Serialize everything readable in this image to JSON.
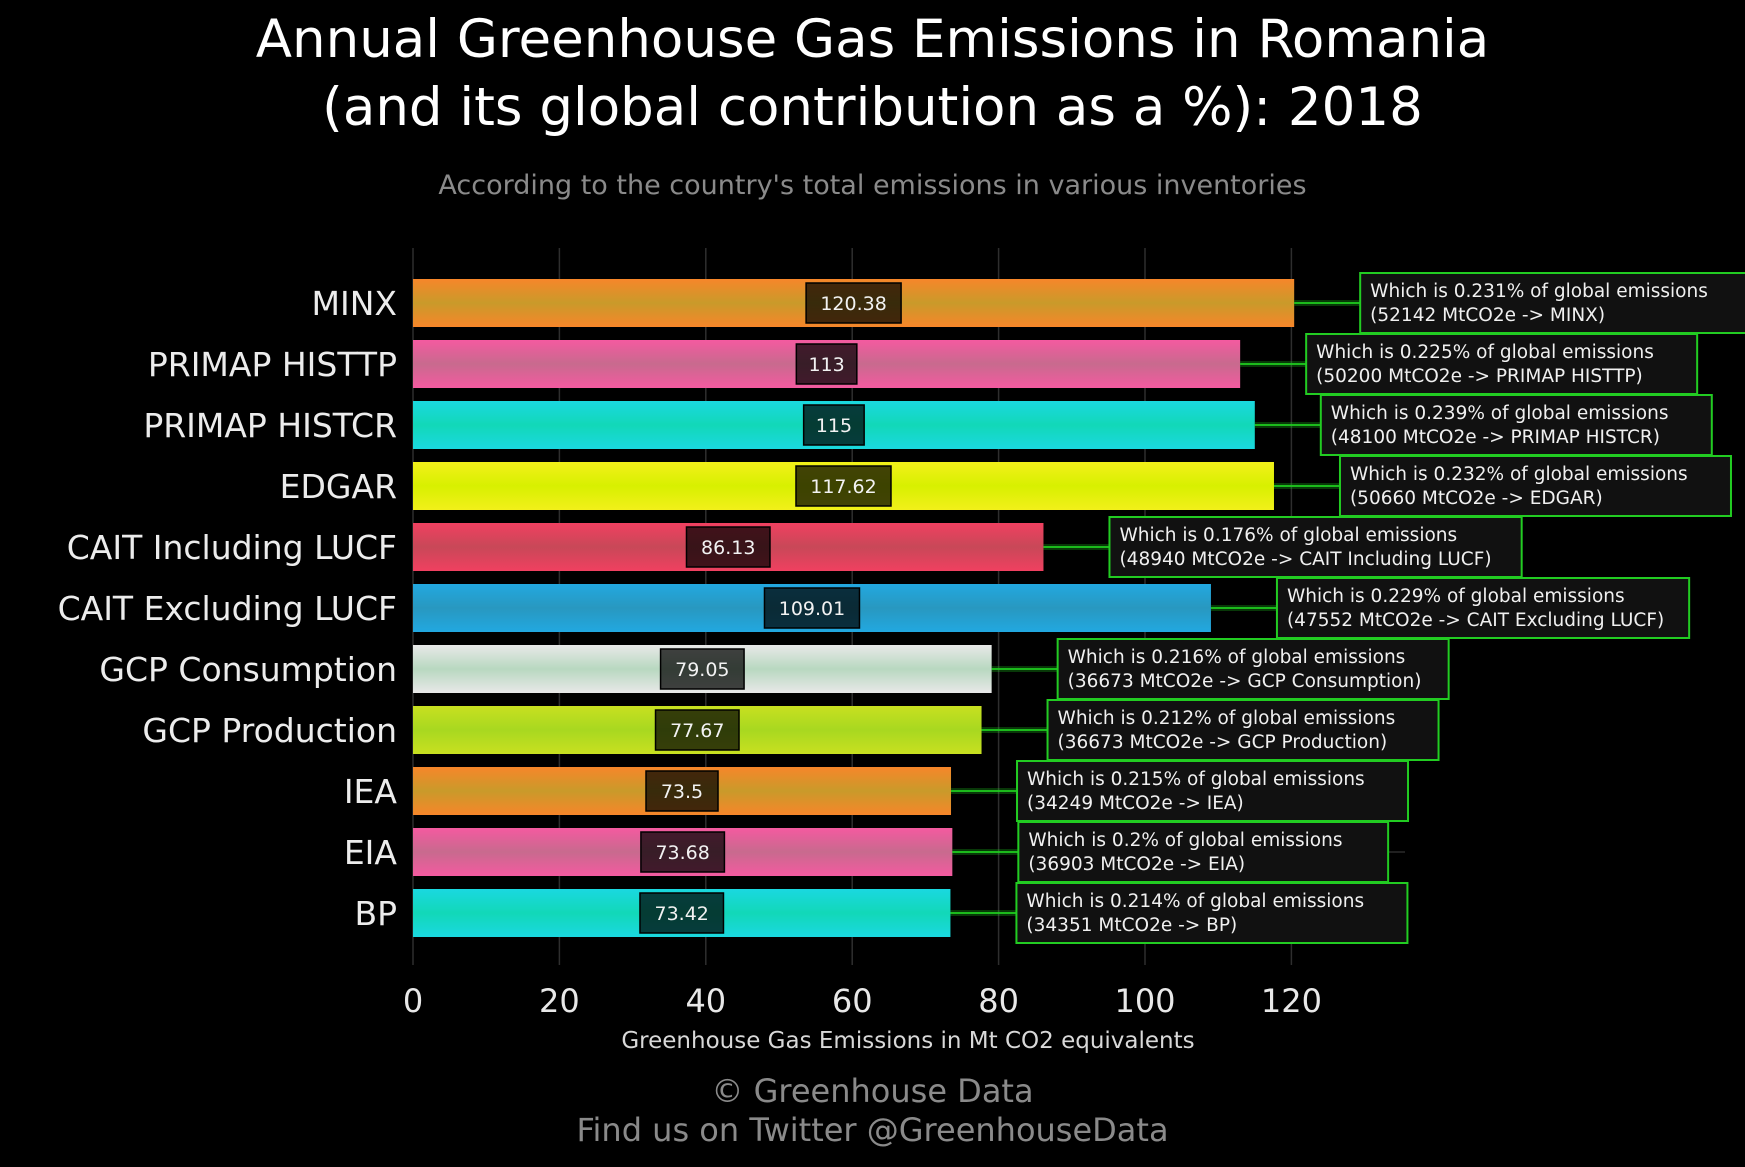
{
  "chart_data": {
    "type": "bar",
    "orientation": "horizontal",
    "title": "Annual Greenhouse Gas Emissions in Romania\n(and its global contribution as a %): 2018",
    "subtitle": "According to the country's total emissions in various inventories",
    "xlabel": "Greenhouse Gas Emissions in Mt CO2 equivalents",
    "ylabel": "",
    "xlim": [
      0,
      135
    ],
    "xticks": [
      0,
      20,
      40,
      60,
      80,
      100,
      120
    ],
    "grid": true,
    "categories": [
      "MINX",
      "PRIMAP HISTTP",
      "PRIMAP HISTCR",
      "EDGAR",
      "CAIT Including LUCF",
      "CAIT Excluding LUCF",
      "GCP Consumption",
      "GCP Production",
      "IEA",
      "EIA",
      "BP"
    ],
    "value_labels": [
      "120.38",
      "113",
      "115",
      "117.62",
      "86.13",
      "109.01",
      "79.05",
      "77.67",
      "73.5",
      "73.68",
      "73.42"
    ],
    "values": [
      120.38,
      113,
      115,
      117.62,
      86.13,
      109.01,
      79.05,
      77.67,
      73.5,
      73.68,
      73.42
    ],
    "annotations": [
      {
        "line1": "Which is 0.231% of global emissions",
        "line2": "(52142 MtCO2e -> MINX)"
      },
      {
        "line1": "Which is 0.225% of global emissions",
        "line2": "(50200 MtCO2e -> PRIMAP HISTTP)"
      },
      {
        "line1": "Which is 0.239% of global emissions",
        "line2": "(48100 MtCO2e -> PRIMAP HISTCR)"
      },
      {
        "line1": "Which is 0.232% of global emissions",
        "line2": "(50660 MtCO2e -> EDGAR)"
      },
      {
        "line1": "Which is 0.176% of global emissions",
        "line2": "(48940 MtCO2e -> CAIT Including LUCF)"
      },
      {
        "line1": "Which is 0.229% of global emissions",
        "line2": "(47552 MtCO2e -> CAIT Excluding LUCF)"
      },
      {
        "line1": "Which is 0.216% of global emissions",
        "line2": "(36673 MtCO2e -> GCP Consumption)"
      },
      {
        "line1": "Which is 0.212% of global emissions",
        "line2": "(36673 MtCO2e -> GCP Production)"
      },
      {
        "line1": "Which is 0.215% of global emissions",
        "line2": "(34249 MtCO2e -> IEA)"
      },
      {
        "line1": "Which is 0.2% of global emissions",
        "line2": "(36903 MtCO2e -> EIA)"
      },
      {
        "line1": "Which is 0.214% of global emissions",
        "line2": "(34351 MtCO2e -> BP)"
      }
    ],
    "colors": [
      [
        "#f7862a",
        "#c99a2a"
      ],
      [
        "#f45aa0",
        "#c86a8e"
      ],
      [
        "#1ad8e0",
        "#12d8b8"
      ],
      [
        "#f2f01a",
        "#d8f000"
      ],
      [
        "#f04060",
        "#c84858"
      ],
      [
        "#22a8e0",
        "#2898c0"
      ],
      [
        "#e8e8e8",
        "#b8d8c0"
      ],
      [
        "#c8e020",
        "#a8d820"
      ],
      [
        "#f7862a",
        "#c99a2a"
      ],
      [
        "#f45aa0",
        "#c86a8e"
      ],
      [
        "#1ad8e0",
        "#12d8b8"
      ]
    ],
    "annotation_border_color": "#22cc22",
    "connector_color": "#1fe01f"
  },
  "footer": {
    "line1": "© Greenhouse Data",
    "line2": "Find us on Twitter @GreenhouseData"
  }
}
